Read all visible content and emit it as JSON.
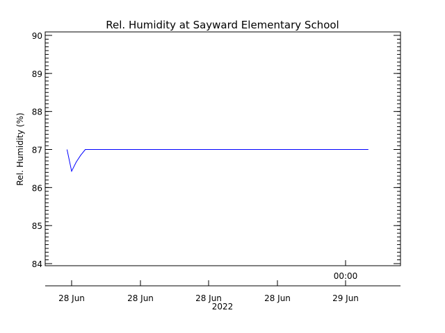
{
  "chart_data": {
    "type": "line",
    "title": "Rel. Humidity at Sayward Elementary School",
    "ylabel": "Rel. Humidity (%)",
    "xlabel": "",
    "ylim": [
      84,
      90
    ],
    "yticks": [
      84,
      85,
      86,
      87,
      88,
      89,
      90
    ],
    "x_tick_labels": [
      "28 Jun",
      "28 Jun",
      "28 Jun",
      "28 Jun",
      "29 Jun"
    ],
    "x_time_label": "00:00",
    "x_year_label": "2022",
    "grid": false,
    "series_color": "#0000ff",
    "series": [
      {
        "x": [
          "2022-06-28 03:40",
          "2022-06-28 04:00",
          "2022-06-28 04:20",
          "2022-06-28 04:40",
          "2022-06-28 05:00",
          "2022-06-29 00:00",
          "2022-06-29 01:40"
        ],
        "values": [
          87.0,
          86.43,
          86.67,
          86.85,
          87.0,
          87.0,
          87.0
        ]
      }
    ]
  }
}
